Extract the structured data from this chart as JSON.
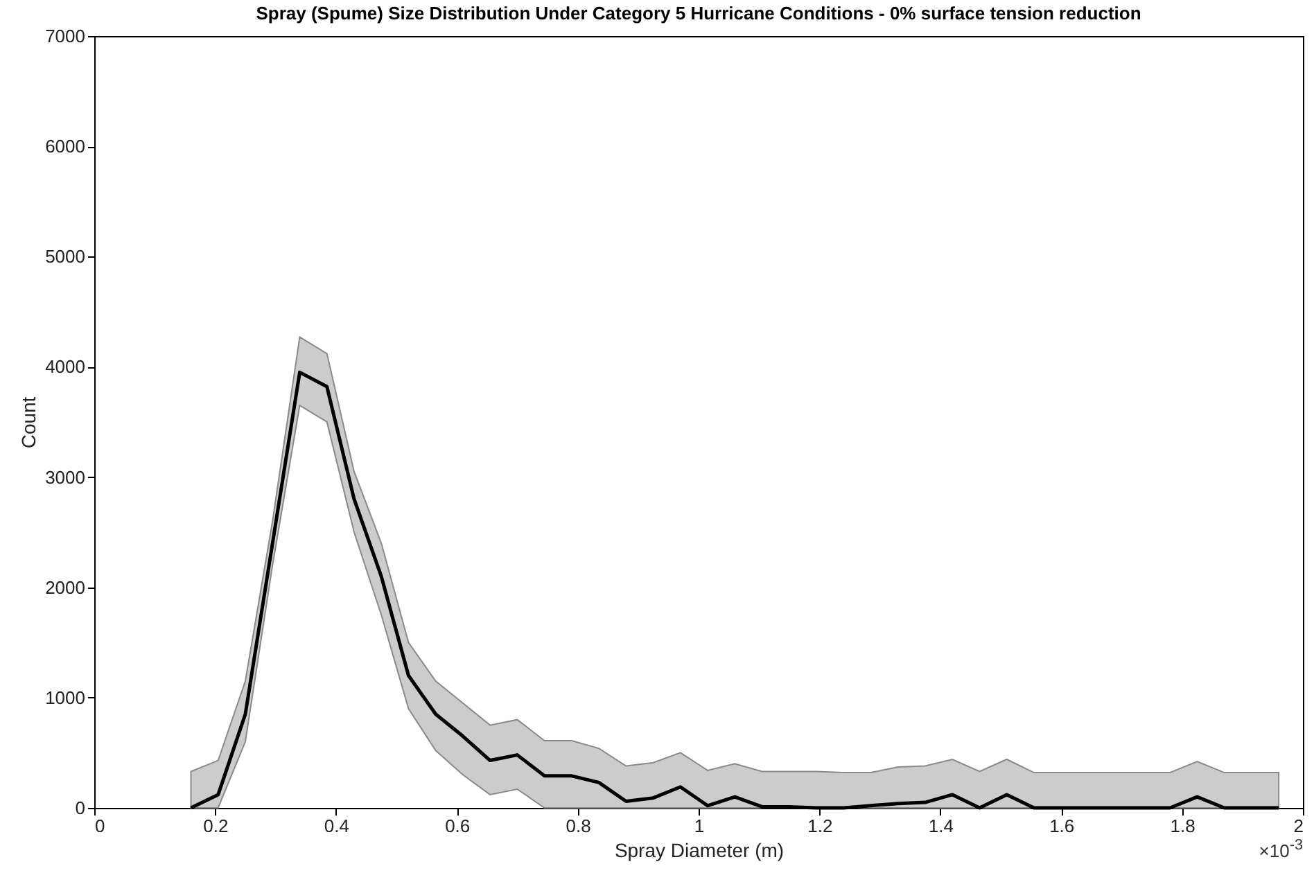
{
  "chart_data": {
    "type": "line",
    "title": "Spray (Spume) Size Distribution Under Category 5 Hurricane Conditions - 0% surface tension reduction",
    "xlabel": "Spray Diameter (m)",
    "ylabel": "Count",
    "annotations": [
      "×10$^{-3}$"
    ],
    "x": [
      0.16,
      0.205,
      0.25,
      0.295,
      0.34,
      0.385,
      0.43,
      0.475,
      0.52,
      0.565,
      0.61,
      0.655,
      0.7,
      0.745,
      0.79,
      0.835,
      0.88,
      0.925,
      0.97,
      1.015,
      1.06,
      1.105,
      1.15,
      1.195,
      1.24,
      1.285,
      1.33,
      1.375,
      1.42,
      1.465,
      1.51,
      1.555,
      1.6,
      1.645,
      1.69,
      1.735,
      1.78,
      1.825,
      1.87,
      1.915,
      1.96
    ],
    "series": [
      {
        "color": "#000000",
        "values": [
          0,
          120,
          850,
          2400,
          3950,
          3820,
          2800,
          2100,
          1200,
          850,
          650,
          430,
          480,
          290,
          290,
          230,
          60,
          90,
          190,
          20,
          100,
          10,
          10,
          0,
          0,
          20,
          40,
          50,
          120,
          0,
          120,
          0,
          0,
          0,
          0,
          0,
          0,
          100,
          0,
          0,
          0
        ],
        "lower": [
          0,
          0,
          600,
          2200,
          3650,
          3500,
          2500,
          1750,
          900,
          520,
          300,
          120,
          170,
          0,
          0,
          0,
          0,
          0,
          0,
          0,
          0,
          0,
          0,
          0,
          0,
          0,
          0,
          0,
          0,
          0,
          0,
          0,
          0,
          0,
          0,
          0,
          0,
          0,
          0,
          0,
          0
        ],
        "upper": [
          330,
          430,
          1150,
          2600,
          4270,
          4120,
          3050,
          2400,
          1500,
          1150,
          950,
          750,
          800,
          610,
          610,
          540,
          380,
          410,
          500,
          340,
          400,
          330,
          330,
          330,
          320,
          320,
          370,
          380,
          440,
          330,
          440,
          320,
          320,
          320,
          320,
          320,
          320,
          420,
          320,
          320,
          320
        ]
      }
    ],
    "xlim": [
      0,
      2
    ],
    "xticks": [
      0,
      0.2,
      0.4,
      0.6,
      0.8,
      1,
      1.2,
      1.4,
      1.6,
      1.8,
      2
    ],
    "ylim": [
      0,
      7000
    ],
    "yticks": [
      0,
      1000,
      2000,
      3000,
      4000,
      5000,
      6000,
      7000
    ],
    "grid": false,
    "marker": "none",
    "line_style": "solid"
  }
}
